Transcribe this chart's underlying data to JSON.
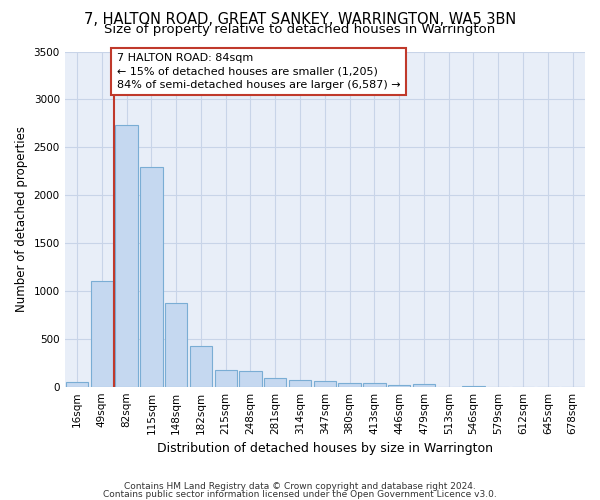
{
  "title_line1": "7, HALTON ROAD, GREAT SANKEY, WARRINGTON, WA5 3BN",
  "title_line2": "Size of property relative to detached houses in Warrington",
  "xlabel": "Distribution of detached houses by size in Warrington",
  "ylabel": "Number of detached properties",
  "categories": [
    "16sqm",
    "49sqm",
    "82sqm",
    "115sqm",
    "148sqm",
    "182sqm",
    "215sqm",
    "248sqm",
    "281sqm",
    "314sqm",
    "347sqm",
    "380sqm",
    "413sqm",
    "446sqm",
    "479sqm",
    "513sqm",
    "546sqm",
    "579sqm",
    "612sqm",
    "645sqm",
    "678sqm"
  ],
  "values": [
    50,
    1100,
    2730,
    2290,
    875,
    425,
    175,
    165,
    95,
    65,
    55,
    40,
    35,
    15,
    25,
    0,
    5,
    0,
    0,
    0,
    0
  ],
  "bar_color": "#c5d8f0",
  "bar_edgecolor": "#7aadd4",
  "vline_x_index": 2,
  "vline_color": "#c0392b",
  "annotation_text": "7 HALTON ROAD: 84sqm\n← 15% of detached houses are smaller (1,205)\n84% of semi-detached houses are larger (6,587) →",
  "annotation_box_edgecolor": "#c0392b",
  "ylim": [
    0,
    3500
  ],
  "yticks": [
    0,
    500,
    1000,
    1500,
    2000,
    2500,
    3000,
    3500
  ],
  "grid_color": "#c8d4e8",
  "bg_color": "#e8eef8",
  "footer_line1": "Contains HM Land Registry data © Crown copyright and database right 2024.",
  "footer_line2": "Contains public sector information licensed under the Open Government Licence v3.0.",
  "title_fontsize": 10.5,
  "subtitle_fontsize": 9.5,
  "xlabel_fontsize": 9,
  "ylabel_fontsize": 8.5,
  "tick_fontsize": 7.5,
  "annotation_fontsize": 8,
  "footer_fontsize": 6.5
}
